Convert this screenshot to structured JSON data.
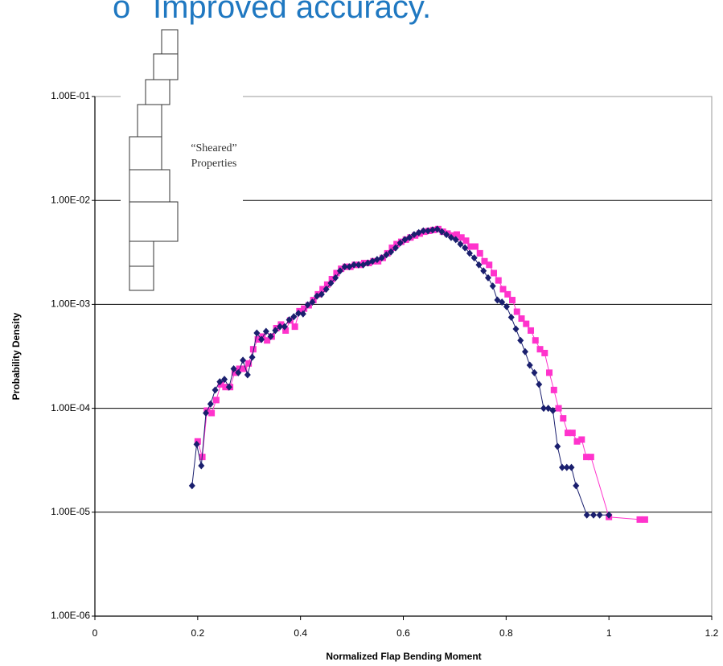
{
  "heading": {
    "bullet": "o",
    "text": "Improved accuracy."
  },
  "chart_data": {
    "type": "line",
    "x_label": "Normalized Flap Bending Moment",
    "y_label": "Probability Density",
    "annotation": [
      "“Sheared”",
      "Properties"
    ],
    "ylog": true,
    "grid": true,
    "xlim": [
      0,
      1.2
    ],
    "xticks": [
      0,
      0.2,
      0.4,
      0.6,
      0.8,
      1,
      1.2
    ],
    "ylim": [
      1e-06,
      0.1
    ],
    "yticks": [
      {
        "value": 1e-06,
        "label": "1.00E-06"
      },
      {
        "value": 1e-05,
        "label": "1.00E-05"
      },
      {
        "value": 0.0001,
        "label": "1.00E-04"
      },
      {
        "value": 0.001,
        "label": "1.00E-03"
      },
      {
        "value": 0.01,
        "label": "1.00E-02"
      },
      {
        "value": 0.1,
        "label": "1.00E-01"
      }
    ],
    "series": [
      {
        "color": "#ff33cc",
        "marker": "square",
        "x": [
          0.2,
          0.209,
          0.218,
          0.227,
          0.236,
          0.245,
          0.254,
          0.263,
          0.272,
          0.281,
          0.29,
          0.299,
          0.308,
          0.317,
          0.326,
          0.335,
          0.344,
          0.353,
          0.362,
          0.371,
          0.38,
          0.389,
          0.398,
          0.407,
          0.416,
          0.425,
          0.434,
          0.443,
          0.452,
          0.461,
          0.47,
          0.479,
          0.488,
          0.497,
          0.506,
          0.515,
          0.524,
          0.533,
          0.542,
          0.551,
          0.56,
          0.569,
          0.578,
          0.587,
          0.596,
          0.605,
          0.614,
          0.623,
          0.632,
          0.641,
          0.65,
          0.659,
          0.668,
          0.677,
          0.686,
          0.695,
          0.704,
          0.713,
          0.722,
          0.731,
          0.74,
          0.749,
          0.758,
          0.767,
          0.776,
          0.785,
          0.794,
          0.803,
          0.812,
          0.821,
          0.83,
          0.839,
          0.848,
          0.857,
          0.866,
          0.875,
          0.884,
          0.893,
          0.902,
          0.911,
          0.92,
          0.929,
          0.938,
          0.947,
          0.956,
          0.965,
          1.0,
          1.06,
          1.07
        ],
        "values": [
          4.8e-05,
          3.4e-05,
          9.5e-05,
          9e-05,
          0.00012,
          0.00017,
          0.00016,
          0.00016,
          0.00022,
          0.00024,
          0.00024,
          0.00027,
          0.00037,
          0.00046,
          0.00049,
          0.00045,
          0.00049,
          0.00059,
          0.00064,
          0.00056,
          0.0007,
          0.00061,
          0.00086,
          0.00091,
          0.00098,
          0.0011,
          0.00125,
          0.0014,
          0.00155,
          0.00175,
          0.002,
          0.0022,
          0.0023,
          0.0023,
          0.0024,
          0.0024,
          0.0025,
          0.0025,
          0.0026,
          0.0026,
          0.0028,
          0.0031,
          0.0035,
          0.0038,
          0.004,
          0.0042,
          0.0044,
          0.0046,
          0.0048,
          0.005,
          0.0051,
          0.0052,
          0.0053,
          0.005,
          0.0048,
          0.0046,
          0.0047,
          0.0044,
          0.0041,
          0.0036,
          0.0036,
          0.0031,
          0.0026,
          0.0024,
          0.002,
          0.0017,
          0.0014,
          0.00125,
          0.0011,
          0.00085,
          0.00073,
          0.00065,
          0.00056,
          0.00045,
          0.00037,
          0.00034,
          0.00022,
          0.00015,
          0.0001,
          8e-05,
          5.8e-05,
          5.8e-05,
          4.8e-05,
          5e-05,
          3.4e-05,
          3.4e-05,
          9e-06,
          8.5e-06,
          8.5e-06
        ]
      },
      {
        "color": "#1a1f6e",
        "marker": "diamond",
        "x": [
          0.189,
          0.198,
          0.207,
          0.216,
          0.225,
          0.234,
          0.243,
          0.252,
          0.261,
          0.27,
          0.279,
          0.288,
          0.297,
          0.306,
          0.315,
          0.324,
          0.333,
          0.342,
          0.351,
          0.36,
          0.369,
          0.378,
          0.387,
          0.396,
          0.405,
          0.414,
          0.423,
          0.432,
          0.441,
          0.45,
          0.459,
          0.468,
          0.477,
          0.486,
          0.495,
          0.504,
          0.513,
          0.522,
          0.531,
          0.54,
          0.549,
          0.558,
          0.567,
          0.576,
          0.585,
          0.594,
          0.603,
          0.612,
          0.621,
          0.63,
          0.639,
          0.648,
          0.657,
          0.666,
          0.675,
          0.684,
          0.693,
          0.702,
          0.711,
          0.72,
          0.729,
          0.738,
          0.747,
          0.756,
          0.765,
          0.774,
          0.783,
          0.792,
          0.801,
          0.81,
          0.819,
          0.828,
          0.837,
          0.846,
          0.855,
          0.864,
          0.873,
          0.882,
          0.891,
          0.9,
          0.909,
          0.918,
          0.927,
          0.936,
          0.957,
          0.97,
          0.982,
          1.0
        ],
        "values": [
          1.8e-05,
          4.5e-05,
          2.8e-05,
          9e-05,
          0.00011,
          0.00015,
          0.00018,
          0.00019,
          0.00016,
          0.00024,
          0.00022,
          0.00029,
          0.00021,
          0.00031,
          0.00053,
          0.00046,
          0.00055,
          0.00049,
          0.00056,
          0.00061,
          0.00061,
          0.00071,
          0.00076,
          0.00082,
          0.00081,
          0.00099,
          0.00105,
          0.0012,
          0.00125,
          0.0014,
          0.0016,
          0.0018,
          0.0021,
          0.0023,
          0.0023,
          0.0024,
          0.0024,
          0.0024,
          0.0025,
          0.0026,
          0.0027,
          0.0028,
          0.003,
          0.0032,
          0.0035,
          0.0039,
          0.0042,
          0.0044,
          0.0047,
          0.0049,
          0.0051,
          0.0051,
          0.0052,
          0.0053,
          0.005,
          0.0047,
          0.0044,
          0.0042,
          0.0038,
          0.0035,
          0.0031,
          0.0028,
          0.0024,
          0.0021,
          0.0018,
          0.0015,
          0.0011,
          0.00105,
          0.00095,
          0.00075,
          0.00058,
          0.00045,
          0.00035,
          0.00026,
          0.00022,
          0.00017,
          0.0001,
          0.0001,
          9.5e-05,
          4.3e-05,
          2.7e-05,
          2.7e-05,
          2.7e-05,
          1.8e-05,
          9.4e-06,
          9.4e-06,
          9.4e-06,
          9.4e-06
        ]
      }
    ]
  }
}
